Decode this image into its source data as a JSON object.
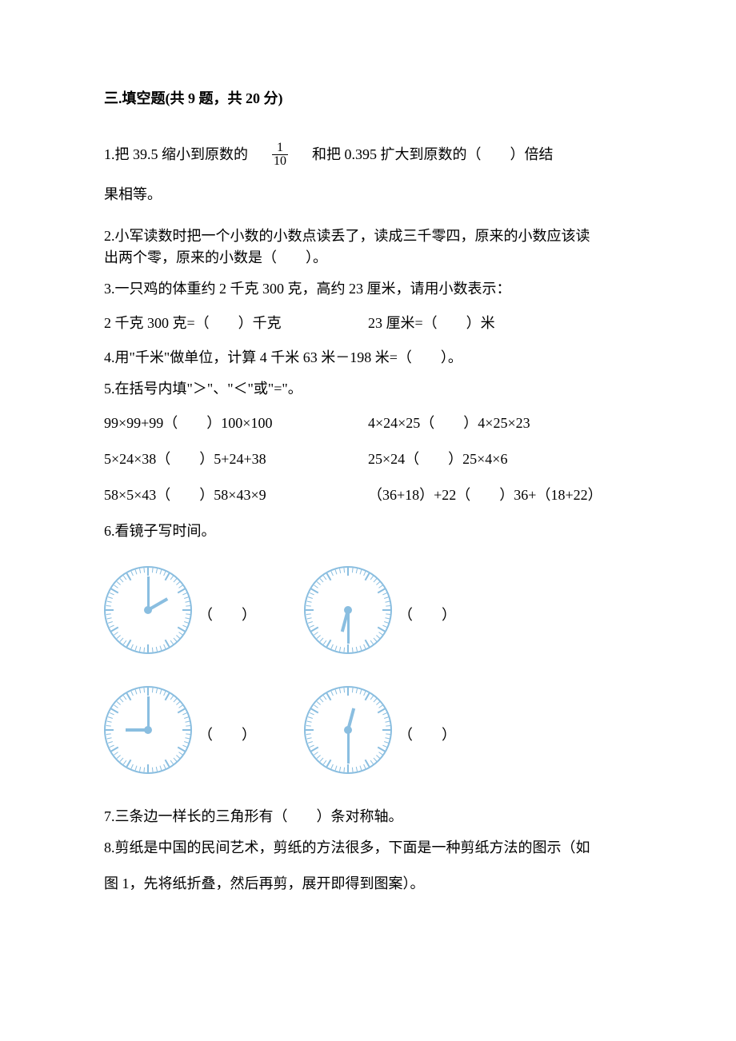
{
  "section": {
    "title": "三.填空题(共 9 题，共 20 分)"
  },
  "q1": {
    "part1": "1.把 39.5 缩小到原数的",
    "frac_num": "1",
    "frac_den": "10",
    "part2": "和把 0.395 扩大到原数的（　　）倍结",
    "line2": "果相等。"
  },
  "q2": {
    "line1": "2.小军读数时把一个小数的小数点读丢了，读成三千零四，原来的小数应该读",
    "line2": "出两个零，原来的小数是（　　）。"
  },
  "q3": {
    "line1": "3.一只鸡的体重约 2 千克 300 克，高约 23 厘米，请用小数表示：",
    "conv1": "2 千克 300 克=（　　）千克",
    "conv2": "23 厘米=（　　）米"
  },
  "q4": {
    "text": "4.用\"千米\"做单位，计算 4 千米 63 米－198 米=（　　）。"
  },
  "q5": {
    "intro": "5.在括号内填\"＞\"、\"＜\"或\"=\"。",
    "rows": [
      {
        "left": "99×99+99（　　）100×100",
        "right": "4×24×25（　　）4×25×23"
      },
      {
        "left": "5×24×38（　　）5+24+38",
        "right": "25×24（　　）25×4×6"
      },
      {
        "left": "58×5×43（　　）58×43×9",
        "right": "（36+18）+22（　　）36+（18+22）"
      }
    ]
  },
  "q6": {
    "intro": "6.看镜子写时间。",
    "blank": "（　　）",
    "clocks": [
      {
        "hour_angle": 60,
        "minute_angle": 0
      },
      {
        "hour_angle": 195,
        "minute_angle": 180
      },
      {
        "hour_angle": 270,
        "minute_angle": 0
      },
      {
        "hour_angle": 15,
        "minute_angle": 180
      }
    ],
    "clock_color": "#8abee0"
  },
  "q7": {
    "text": "7.三条边一样长的三角形有（　　）条对称轴。"
  },
  "q8": {
    "line1": "8.剪纸是中国的民间艺术，剪纸的方法很多，下面是一种剪纸方法的图示（如",
    "line2": "图 1，先将纸折叠，然后再剪，展开即得到图案）。"
  }
}
